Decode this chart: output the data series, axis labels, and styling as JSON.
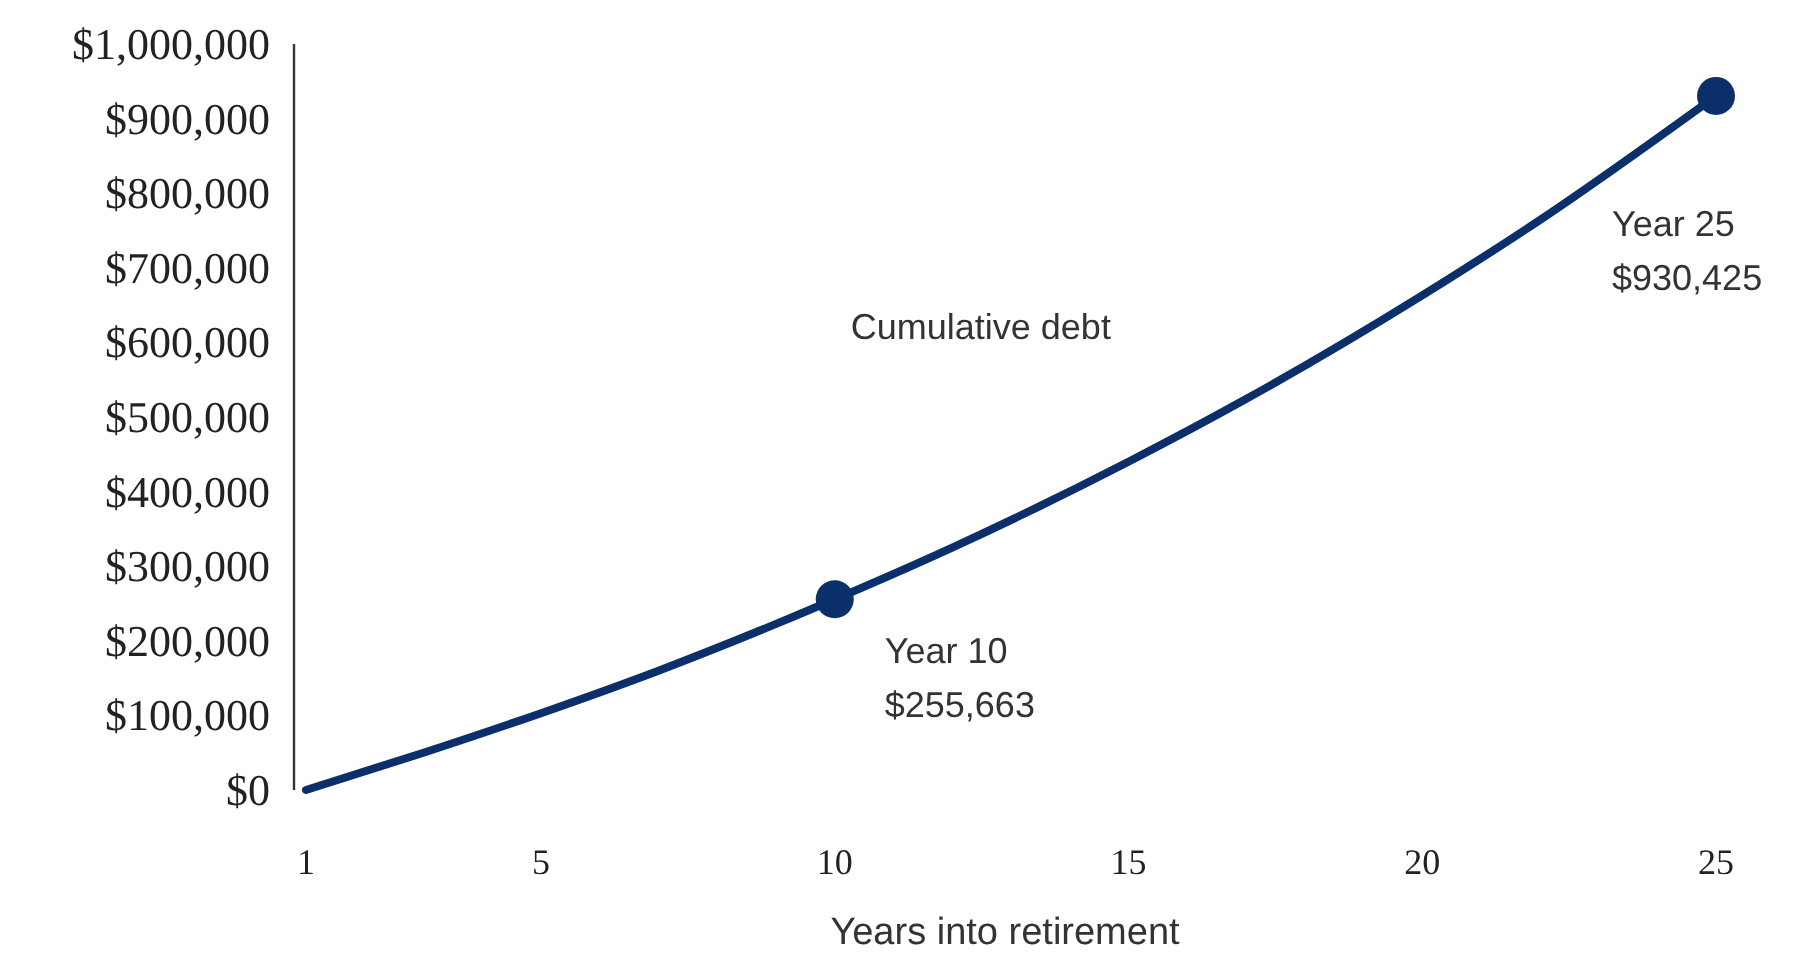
{
  "chart_data": {
    "type": "line",
    "xlabel": "Years into retirement",
    "x": [
      1,
      3,
      5,
      7,
      10,
      12,
      15,
      17,
      20,
      22,
      25
    ],
    "series": [
      {
        "name": "Cumulative debt",
        "color": "#0b2f6b",
        "values": [
          0,
          50000,
          103000,
          160000,
          255663,
          325000,
          440000,
          524000,
          663000,
          764000,
          930425
        ],
        "marker": "none"
      },
      {
        "type": "scatter",
        "color": "#0b2f6b",
        "x": [
          10,
          25
        ],
        "values": [
          255663,
          930425
        ],
        "marker": "circle"
      }
    ],
    "xlim": [
      1,
      25
    ],
    "xticks": [
      1,
      5,
      10,
      15,
      20,
      25
    ],
    "ylim": [
      0,
      1000000
    ],
    "yticks": [
      {
        "value": 0,
        "label": "$0"
      },
      {
        "value": 100000,
        "label": "$100,000"
      },
      {
        "value": 200000,
        "label": "$200,000"
      },
      {
        "value": 300000,
        "label": "$300,000"
      },
      {
        "value": 400000,
        "label": "$400,000"
      },
      {
        "value": 500000,
        "label": "$500,000"
      },
      {
        "value": 600000,
        "label": "$600,000"
      },
      {
        "value": 700000,
        "label": "$700,000"
      },
      {
        "value": 800000,
        "label": "$800,000"
      },
      {
        "value": 900000,
        "label": "$900,000"
      },
      {
        "value": 1000000,
        "label": "$1,000,000"
      }
    ],
    "annotations": [
      {
        "text": "Year 10\n$255,663",
        "x": 10,
        "y": 255663
      },
      {
        "text": "Year 25\n$930,425",
        "x": 25,
        "y": 930425
      }
    ],
    "grid": false
  }
}
